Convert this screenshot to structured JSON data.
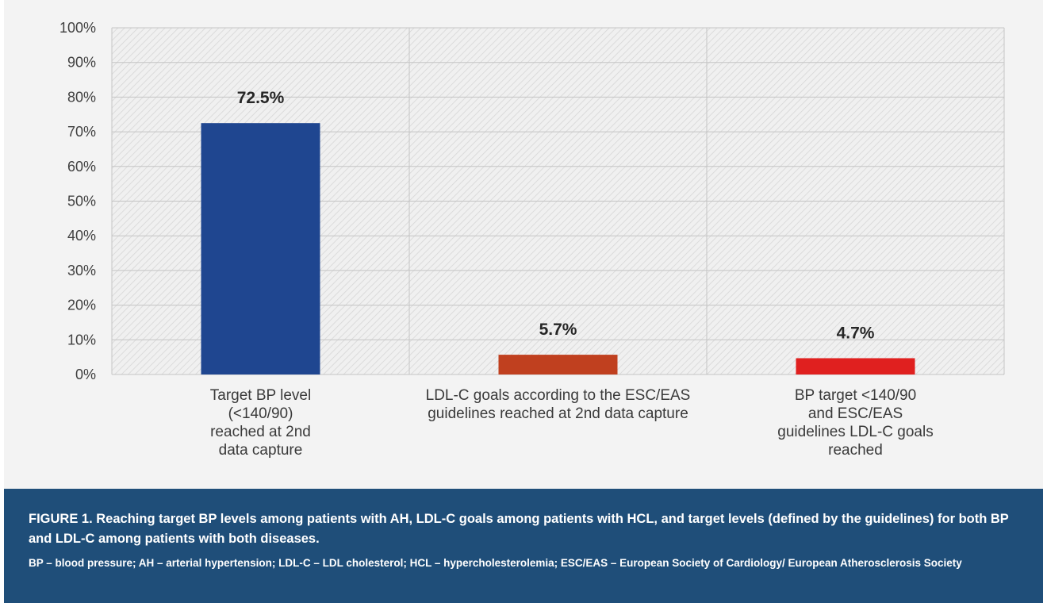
{
  "chart_data": {
    "type": "bar",
    "categories": [
      "Target BP level (<140/90) reached at 2nd data capture",
      "LDL-C goals according to the ESC/EAS guidelines reached at 2nd data capture",
      "BP target <140/90 and ESC/EAS guidelines LDL-C goals reached"
    ],
    "category_lines": [
      [
        "Target BP level",
        "(<140/90)",
        "reached at 2nd",
        "data capture"
      ],
      [
        "LDL-C goals according to the ESC/EAS",
        "guidelines reached at 2nd data capture"
      ],
      [
        "BP target <140/90",
        "and ESC/EAS",
        "guidelines LDL-C goals",
        "reached"
      ]
    ],
    "values": [
      72.5,
      5.7,
      4.7
    ],
    "value_labels": [
      "72.5%",
      "5.7%",
      "4.7%"
    ],
    "bar_colors": [
      "#1f4690",
      "#c0401f",
      "#e0201f"
    ],
    "ylim": [
      0,
      100
    ],
    "yticks": [
      0,
      10,
      20,
      30,
      40,
      50,
      60,
      70,
      80,
      90,
      100
    ],
    "ytick_labels": [
      "0%",
      "10%",
      "20%",
      "30%",
      "40%",
      "50%",
      "60%",
      "70%",
      "80%",
      "90%",
      "100%"
    ],
    "grid": true,
    "title": "",
    "xlabel": "",
    "ylabel": ""
  },
  "caption": {
    "title": "FIGURE 1. Reaching target BP levels among patients with AH, LDL-C goals among patients with HCL, and target levels (defined by the guidelines) for both BP and LDL-C among patients with both diseases.",
    "notes": "BP – blood pressure; AH – arterial hypertension; LDL-C – LDL cholesterol; HCL – hypercholesterolemia; ESC/EAS – European Society of Cardiology/ European Atherosclerosis Society"
  },
  "colors": {
    "caption_background": "#1f4e79",
    "figure_background": "#f3f3f3"
  }
}
